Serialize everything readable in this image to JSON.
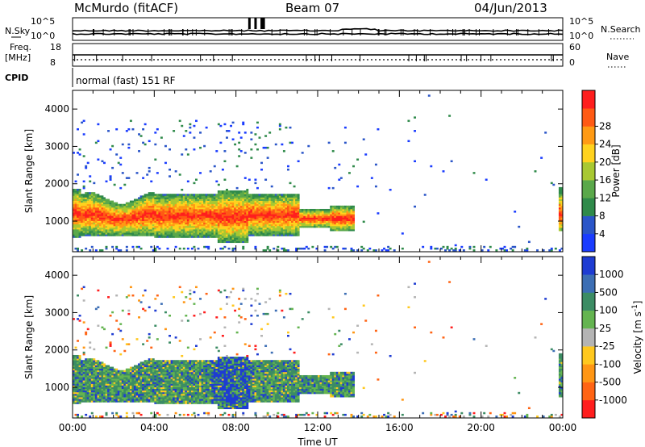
{
  "header": {
    "station": "McMurdo (fitACF)",
    "beam": "Beam 07",
    "date": "04/Jun/2013"
  },
  "top_panels": {
    "nsky_label": "N.Sky",
    "nsearch_label": "N.Search",
    "nsky_ticks": [
      "10^5",
      "10^0"
    ],
    "nsearch_ticks": [
      "10^5",
      "10^0"
    ],
    "freq_label_1": "Freq.",
    "freq_label_2": "[MHz]",
    "freq_ticks": [
      "18",
      "8"
    ],
    "nave_label": "Nave",
    "nave_ticks": [
      "60",
      "0"
    ],
    "cpid_label": "CPID",
    "cpid_text": "normal (fast) 151 RF"
  },
  "chart_data": [
    {
      "type": "heatmap",
      "title": "",
      "quantity": "Power [dB]",
      "ylabel": "Slant Range [km]",
      "xlabel": "",
      "x_range_hours": [
        0,
        24
      ],
      "ylim": [
        180,
        4500
      ],
      "yticks": [
        "1000",
        "2000",
        "3000",
        "4000"
      ],
      "colorbar": {
        "label": "Power [dB]",
        "ticks": [
          "4",
          "8",
          "12",
          "16",
          "20",
          "24",
          "28"
        ],
        "colors": [
          "#1a3cff",
          "#2a55c8",
          "#2f8a4a",
          "#5aa84a",
          "#a8c832",
          "#ffd21e",
          "#ff9a14",
          "#ff5a14",
          "#ff1e1e"
        ]
      }
    },
    {
      "type": "heatmap",
      "title": "",
      "quantity": "Velocity [m s^-1]",
      "ylabel": "Slant Range [km]",
      "xlabel": "Time UT",
      "x_range_hours": [
        0,
        24
      ],
      "ylim": [
        180,
        4500
      ],
      "yticks": [
        "1000",
        "2000",
        "3000",
        "4000"
      ],
      "xticks": [
        "00:00",
        "04:00",
        "08:00",
        "12:00",
        "16:00",
        "20:00",
        "00:00"
      ],
      "colorbar": {
        "label": "Velocity [m s",
        "label_sup": "-1",
        "label_end": "]",
        "ticks": [
          "1000",
          "500",
          "100",
          "25",
          "-25",
          "-100",
          "-500",
          "-1000"
        ],
        "colors": [
          "#1e3cd2",
          "#3c6eb4",
          "#3c8c64",
          "#64b450",
          "#b4b4b4",
          "#ffc81e",
          "#ff9614",
          "#ff6414",
          "#ff1e1e"
        ]
      }
    }
  ]
}
